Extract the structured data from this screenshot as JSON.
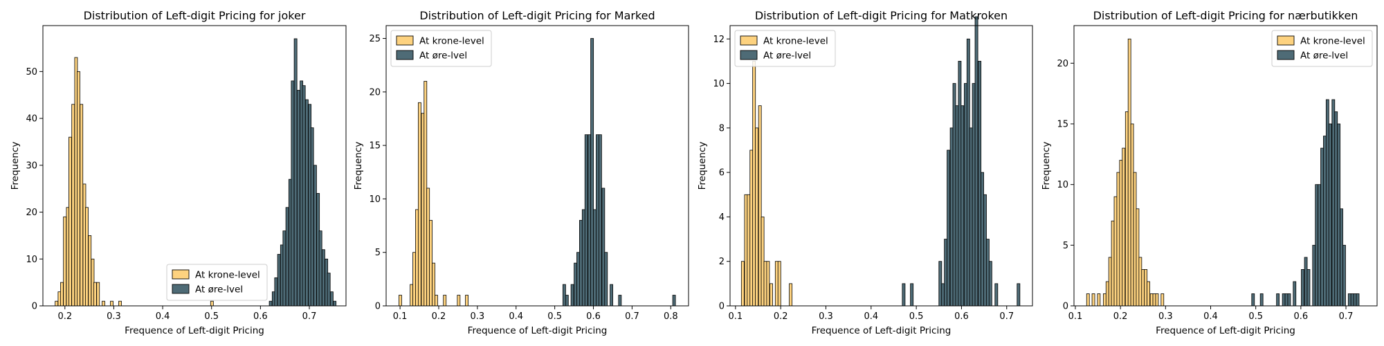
{
  "colors": {
    "krone": "#FDD27F",
    "ore": "#4E6B76",
    "edge": "#000000"
  },
  "chart_data": [
    {
      "type": "histogram",
      "title": "Distribution of Left-digit Pricing for joker",
      "xlabel": "Frequence of Left-digit Pricing",
      "ylabel": "Frequency",
      "xlim": [
        0.155,
        0.775
      ],
      "ylim": [
        0,
        59.8
      ],
      "xticks": [
        "0.2",
        "0.3",
        "0.4",
        "0.5",
        "0.6",
        "0.7"
      ],
      "yticks": [
        "0",
        "10",
        "20",
        "30",
        "40",
        "50"
      ],
      "bin_width": 0.0057,
      "legend": "lower-center",
      "series": [
        {
          "name": "At krone-level",
          "color_key": "krone",
          "bins": [
            [
              0.18,
              1
            ],
            [
              0.186,
              3
            ],
            [
              0.191,
              5
            ],
            [
              0.197,
              19
            ],
            [
              0.203,
              21
            ],
            [
              0.208,
              36
            ],
            [
              0.214,
              43
            ],
            [
              0.22,
              53
            ],
            [
              0.225,
              50
            ],
            [
              0.231,
              43
            ],
            [
              0.237,
              26
            ],
            [
              0.242,
              21
            ],
            [
              0.248,
              15
            ],
            [
              0.254,
              10
            ],
            [
              0.259,
              5
            ],
            [
              0.265,
              5
            ],
            [
              0.276,
              1
            ],
            [
              0.293,
              1
            ],
            [
              0.31,
              1
            ],
            [
              0.498,
              1
            ]
          ]
        },
        {
          "name": "At øre-lvel",
          "color_key": "ore",
          "bins": [
            [
              0.618,
              1
            ],
            [
              0.624,
              3
            ],
            [
              0.629,
              6
            ],
            [
              0.635,
              11
            ],
            [
              0.641,
              13
            ],
            [
              0.646,
              16
            ],
            [
              0.652,
              21
            ],
            [
              0.658,
              27
            ],
            [
              0.663,
              48
            ],
            [
              0.669,
              57
            ],
            [
              0.675,
              46
            ],
            [
              0.681,
              48
            ],
            [
              0.686,
              47
            ],
            [
              0.692,
              44
            ],
            [
              0.698,
              43
            ],
            [
              0.703,
              38
            ],
            [
              0.709,
              30
            ],
            [
              0.715,
              24
            ],
            [
              0.72,
              16
            ],
            [
              0.726,
              12
            ],
            [
              0.732,
              10
            ],
            [
              0.737,
              7
            ],
            [
              0.743,
              3
            ],
            [
              0.749,
              1
            ]
          ]
        }
      ]
    },
    {
      "type": "histogram",
      "title": "Distribution of Left-digit Pricing for Marked",
      "xlabel": "Frequence of Left-digit Pricing",
      "ylabel": "Frequency",
      "xlim": [
        0.064,
        0.846
      ],
      "ylim": [
        0,
        26.2
      ],
      "xticks": [
        "0.1",
        "0.2",
        "0.3",
        "0.4",
        "0.5",
        "0.6",
        "0.7",
        "0.8"
      ],
      "yticks": [
        "0",
        "5",
        "10",
        "15",
        "20",
        "25"
      ],
      "bin_width": 0.0072,
      "legend": "upper-left",
      "series": [
        {
          "name": "At krone-level",
          "color_key": "krone",
          "bins": [
            [
              0.097,
              1
            ],
            [
              0.126,
              2
            ],
            [
              0.133,
              5
            ],
            [
              0.14,
              9
            ],
            [
              0.147,
              19
            ],
            [
              0.155,
              18
            ],
            [
              0.162,
              21
            ],
            [
              0.169,
              11
            ],
            [
              0.176,
              8
            ],
            [
              0.183,
              4
            ],
            [
              0.19,
              1
            ],
            [
              0.212,
              1
            ],
            [
              0.248,
              1
            ],
            [
              0.269,
              1
            ]
          ]
        },
        {
          "name": "At øre-lvel",
          "color_key": "ore",
          "bins": [
            [
              0.521,
              2
            ],
            [
              0.528,
              1
            ],
            [
              0.542,
              2
            ],
            [
              0.55,
              4
            ],
            [
              0.557,
              5
            ],
            [
              0.564,
              8
            ],
            [
              0.571,
              9
            ],
            [
              0.578,
              16
            ],
            [
              0.586,
              16
            ],
            [
              0.593,
              25
            ],
            [
              0.6,
              9
            ],
            [
              0.607,
              16
            ],
            [
              0.614,
              16
            ],
            [
              0.622,
              11
            ],
            [
              0.629,
              5
            ],
            [
              0.643,
              2
            ],
            [
              0.665,
              1
            ],
            [
              0.805,
              1
            ]
          ]
        }
      ]
    },
    {
      "type": "histogram",
      "title": "Distribution of Left-digit Pricing for Matkroken",
      "xlabel": "Frequence of Left-digit Pricing",
      "ylabel": "Frequency",
      "xlim": [
        0.088,
        0.757
      ],
      "ylim": [
        0,
        12.6
      ],
      "xticks": [
        "0.1",
        "0.2",
        "0.3",
        "0.4",
        "0.5",
        "0.6",
        "0.7"
      ],
      "yticks": [
        "0",
        "2",
        "4",
        "6",
        "8",
        "10",
        "12"
      ],
      "bin_width": 0.0062,
      "legend": "upper-left",
      "series": [
        {
          "name": "At krone-level",
          "color_key": "krone",
          "bins": [
            [
              0.113,
              2
            ],
            [
              0.12,
              5
            ],
            [
              0.126,
              5
            ],
            [
              0.132,
              7
            ],
            [
              0.138,
              11
            ],
            [
              0.144,
              8
            ],
            [
              0.151,
              9
            ],
            [
              0.157,
              4
            ],
            [
              0.163,
              2
            ],
            [
              0.169,
              2
            ],
            [
              0.176,
              1
            ],
            [
              0.188,
              2
            ],
            [
              0.194,
              2
            ],
            [
              0.219,
              1
            ]
          ]
        },
        {
          "name": "At øre-lvel",
          "color_key": "ore",
          "bins": [
            [
              0.469,
              1
            ],
            [
              0.487,
              1
            ],
            [
              0.55,
              2
            ],
            [
              0.556,
              1
            ],
            [
              0.562,
              3
            ],
            [
              0.568,
              7
            ],
            [
              0.575,
              8
            ],
            [
              0.581,
              10
            ],
            [
              0.587,
              9
            ],
            [
              0.593,
              11
            ],
            [
              0.599,
              9
            ],
            [
              0.606,
              10
            ],
            [
              0.612,
              12
            ],
            [
              0.618,
              8
            ],
            [
              0.624,
              10
            ],
            [
              0.63,
              13
            ],
            [
              0.637,
              11
            ],
            [
              0.643,
              6
            ],
            [
              0.649,
              5
            ],
            [
              0.655,
              3
            ],
            [
              0.661,
              2
            ],
            [
              0.674,
              1
            ],
            [
              0.723,
              1
            ]
          ]
        }
      ]
    },
    {
      "type": "histogram",
      "title": "Distribution of Left-digit Pricing for nærbutikken",
      "xlabel": "Frequence of Left-digit Pricing",
      "ylabel": "Frequency",
      "xlim": [
        0.097,
        0.769
      ],
      "ylim": [
        0,
        23.1
      ],
      "xticks": [
        "0.1",
        "0.2",
        "0.3",
        "0.4",
        "0.5",
        "0.6",
        "0.7"
      ],
      "yticks": [
        "0",
        "5",
        "10",
        "15",
        "20"
      ],
      "bin_width": 0.0061,
      "legend": "upper-right",
      "series": [
        {
          "name": "At krone-level",
          "color_key": "krone",
          "bins": [
            [
              0.125,
              1
            ],
            [
              0.137,
              1
            ],
            [
              0.149,
              1
            ],
            [
              0.162,
              1
            ],
            [
              0.168,
              2
            ],
            [
              0.174,
              4
            ],
            [
              0.18,
              7
            ],
            [
              0.186,
              9
            ],
            [
              0.192,
              11
            ],
            [
              0.198,
              12
            ],
            [
              0.204,
              13
            ],
            [
              0.211,
              16
            ],
            [
              0.217,
              22
            ],
            [
              0.223,
              15
            ],
            [
              0.229,
              11
            ],
            [
              0.235,
              8
            ],
            [
              0.241,
              4
            ],
            [
              0.247,
              3
            ],
            [
              0.253,
              3
            ],
            [
              0.259,
              2
            ],
            [
              0.266,
              1
            ],
            [
              0.272,
              1
            ],
            [
              0.278,
              1
            ],
            [
              0.29,
              1
            ]
          ]
        },
        {
          "name": "At øre-lvel",
          "color_key": "ore",
          "bins": [
            [
              0.491,
              1
            ],
            [
              0.51,
              1
            ],
            [
              0.546,
              1
            ],
            [
              0.559,
              1
            ],
            [
              0.565,
              1
            ],
            [
              0.571,
              1
            ],
            [
              0.583,
              2
            ],
            [
              0.601,
              3
            ],
            [
              0.608,
              4
            ],
            [
              0.614,
              3
            ],
            [
              0.626,
              5
            ],
            [
              0.632,
              10
            ],
            [
              0.638,
              10
            ],
            [
              0.644,
              13
            ],
            [
              0.65,
              14
            ],
            [
              0.656,
              17
            ],
            [
              0.662,
              15
            ],
            [
              0.669,
              17
            ],
            [
              0.675,
              16
            ],
            [
              0.681,
              15
            ],
            [
              0.687,
              8
            ],
            [
              0.693,
              5
            ],
            [
              0.705,
              1
            ],
            [
              0.711,
              1
            ],
            [
              0.717,
              1
            ],
            [
              0.723,
              1
            ]
          ]
        }
      ]
    }
  ]
}
